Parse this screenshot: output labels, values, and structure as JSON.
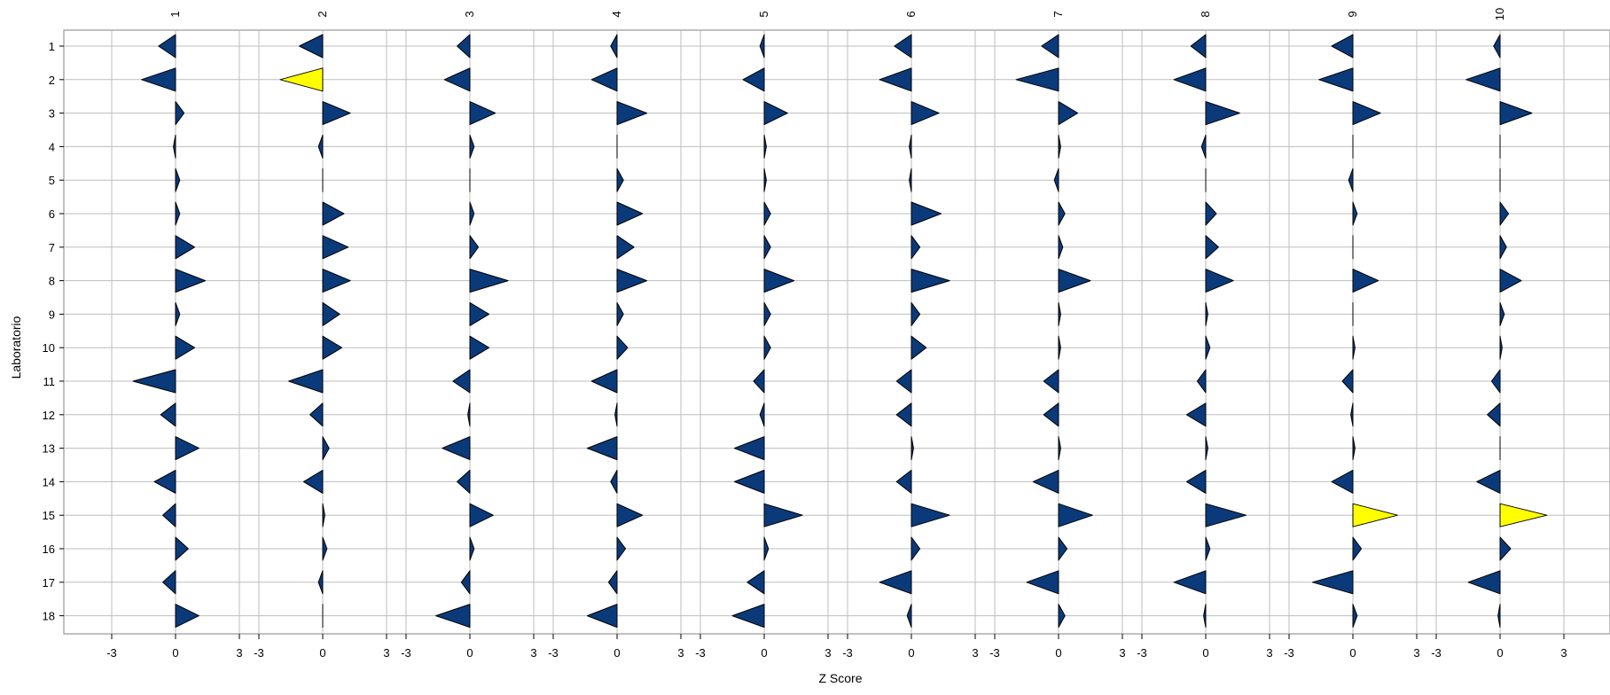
{
  "chart_data": {
    "type": "scatter",
    "marker": "triangle-from-zero",
    "xlabel": "Z Score",
    "ylabel": "Laboratorio",
    "panel_labels": [
      "1",
      "2",
      "3",
      "4",
      "5",
      "6",
      "7",
      "8",
      "9",
      "10"
    ],
    "y_categories": [
      "1",
      "2",
      "3",
      "4",
      "5",
      "6",
      "7",
      "8",
      "9",
      "10",
      "11",
      "12",
      "13",
      "14",
      "15",
      "16",
      "17",
      "18"
    ],
    "x_ticks": [
      -3,
      0,
      3
    ],
    "x_tick_labels": [
      "-3",
      "0",
      "3"
    ],
    "xlim": [
      -5,
      5
    ],
    "grid": true,
    "colors": {
      "normal": "#0b3a7a",
      "highlight": "#ffff00",
      "grid": "#bdbdbd",
      "outline": "#000000"
    },
    "panels": [
      {
        "label": "1",
        "values": [
          -0.8,
          -1.6,
          0.4,
          -0.1,
          0.2,
          0.2,
          0.9,
          1.4,
          0.2,
          0.9,
          -2.0,
          -0.7,
          1.1,
          -1.0,
          -0.6,
          0.6,
          -0.6,
          1.1
        ],
        "highlight": []
      },
      {
        "label": "2",
        "values": [
          -1.1,
          -2.0,
          1.3,
          -0.2,
          0.0,
          1.0,
          1.2,
          1.3,
          0.8,
          0.9,
          -1.6,
          -0.6,
          0.3,
          -0.9,
          0.1,
          0.2,
          -0.2,
          0.0
        ],
        "highlight": [
          1
        ]
      },
      {
        "label": "3",
        "values": [
          -0.6,
          -1.2,
          1.2,
          0.2,
          0.0,
          0.2,
          0.4,
          1.8,
          0.9,
          0.9,
          -0.8,
          -0.1,
          -1.3,
          -0.6,
          1.1,
          0.2,
          -0.4,
          -1.6
        ],
        "highlight": []
      },
      {
        "label": "4",
        "values": [
          -0.3,
          -1.2,
          1.4,
          0.0,
          0.3,
          1.2,
          0.8,
          1.4,
          0.3,
          0.5,
          -1.2,
          -0.1,
          -1.4,
          -0.3,
          1.2,
          0.4,
          -0.4,
          -1.4
        ],
        "highlight": []
      },
      {
        "label": "5",
        "values": [
          -0.2,
          -1.0,
          1.1,
          0.1,
          0.1,
          0.3,
          0.3,
          1.4,
          0.3,
          0.3,
          -0.5,
          -0.2,
          -1.4,
          -1.4,
          1.8,
          0.2,
          -0.8,
          -1.5
        ],
        "highlight": []
      },
      {
        "label": "6",
        "values": [
          -0.8,
          -1.5,
          1.3,
          -0.1,
          -0.1,
          1.4,
          0.4,
          1.8,
          0.4,
          0.7,
          -0.7,
          -0.7,
          0.1,
          -0.7,
          1.8,
          0.4,
          -1.5,
          -0.2
        ],
        "highlight": []
      },
      {
        "label": "7",
        "values": [
          -0.8,
          -2.0,
          0.9,
          0.1,
          -0.2,
          0.3,
          0.2,
          1.5,
          0.1,
          0.1,
          -0.7,
          -0.7,
          0.1,
          -1.2,
          1.6,
          0.4,
          -1.5,
          0.3
        ],
        "highlight": []
      },
      {
        "label": "8",
        "values": [
          -0.7,
          -1.5,
          1.6,
          -0.2,
          0.0,
          0.5,
          0.6,
          1.3,
          0.1,
          0.2,
          -0.4,
          -0.9,
          0.1,
          -0.9,
          1.9,
          0.2,
          -1.5,
          -0.1
        ],
        "highlight": []
      },
      {
        "label": "9",
        "values": [
          -1.0,
          -1.6,
          1.3,
          0.0,
          -0.2,
          0.2,
          0.0,
          1.2,
          0.0,
          0.1,
          -0.5,
          -0.1,
          0.1,
          -1.0,
          2.1,
          0.4,
          -1.9,
          0.2
        ],
        "highlight": [
          14
        ]
      },
      {
        "label": "10",
        "values": [
          -0.3,
          -1.6,
          1.5,
          0.0,
          0.0,
          0.4,
          0.3,
          1.0,
          0.2,
          0.1,
          -0.4,
          -0.6,
          0.0,
          -1.1,
          2.2,
          0.5,
          -1.5,
          -0.1
        ],
        "highlight": [
          14
        ]
      }
    ]
  }
}
